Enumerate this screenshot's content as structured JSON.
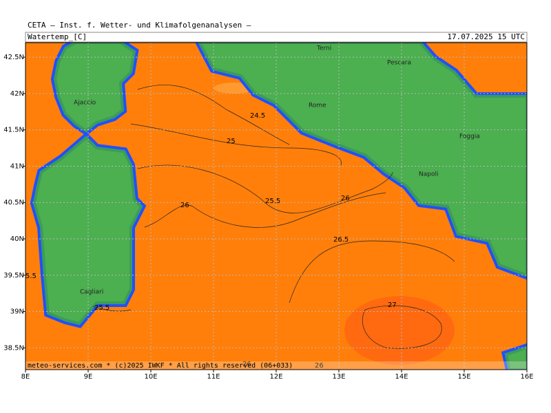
{
  "header": {
    "title": "CETA — Inst. f. Wetter- und Klimafolgenanalysen —",
    "field": "Watertemp_[C]",
    "time": "17.07.2025 15 UTC"
  },
  "map": {
    "lonlim": [
      8,
      16
    ],
    "latlim": [
      38.2,
      42.7
    ],
    "lon_ticks": [
      {
        "value": 8,
        "label": "8E"
      },
      {
        "value": 9,
        "label": "9E"
      },
      {
        "value": 10,
        "label": "10E"
      },
      {
        "value": 11,
        "label": "11E"
      },
      {
        "value": 12,
        "label": "12E"
      },
      {
        "value": 13,
        "label": "13E"
      },
      {
        "value": 14,
        "label": "14E"
      },
      {
        "value": 15,
        "label": "15E"
      },
      {
        "value": 16,
        "label": "16E"
      }
    ],
    "lat_ticks": [
      {
        "value": 38.5,
        "label": "38.5N"
      },
      {
        "value": 39,
        "label": "39N"
      },
      {
        "value": 39.5,
        "label": "39.5N"
      },
      {
        "value": 40,
        "label": "40N"
      },
      {
        "value": 40.5,
        "label": "40.5N"
      },
      {
        "value": 41,
        "label": "41N"
      },
      {
        "value": 41.5,
        "label": "41.5N"
      },
      {
        "value": 42,
        "label": "42N"
      },
      {
        "value": 42.5,
        "label": "42.5N"
      }
    ],
    "cities": [
      "Terni",
      "Pescara",
      "Ajaccio",
      "Rome",
      "Foggia",
      "Napoli",
      "Cagliari"
    ],
    "contour_labels": [
      "24.5",
      "25",
      "25.5",
      "26",
      "26",
      "26.5",
      "27",
      "25.5",
      "5.5",
      "26",
      "26"
    ]
  },
  "footer": "meteo-services.com * (c)2025 IWKF * All rights reserved (06+033)"
}
